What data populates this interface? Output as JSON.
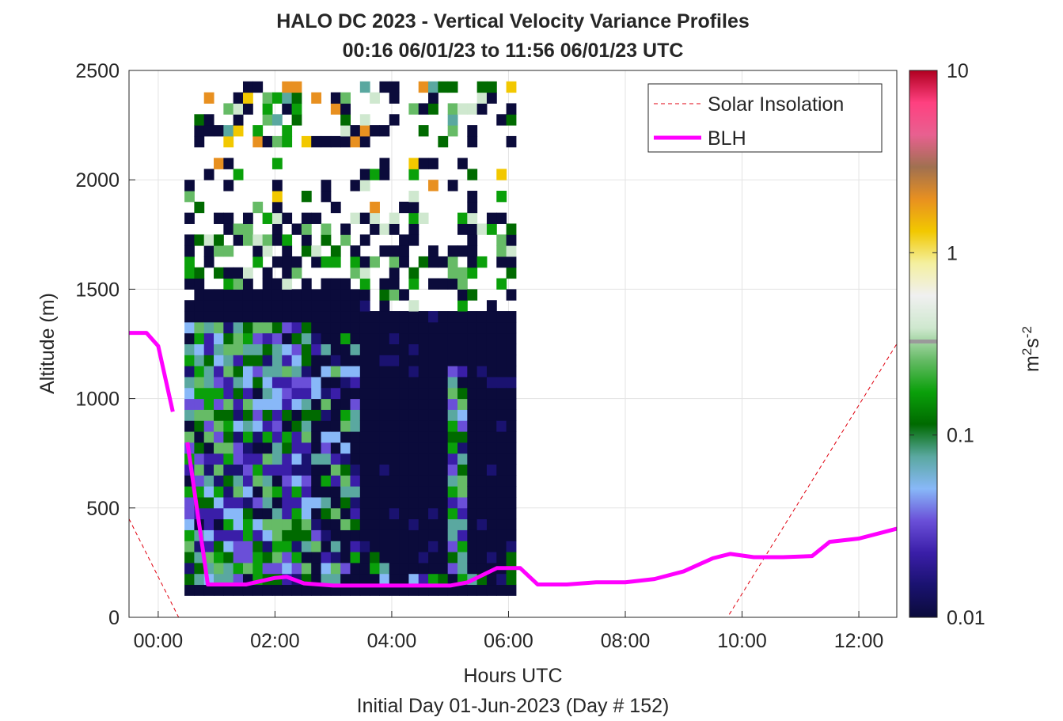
{
  "chart_data": {
    "type": "heatmap",
    "title_line1": "HALO DC 2023 - Vertical Velocity Variance Profiles",
    "title_line2": "00:16 06/01/23 to 11:56 06/01/23  UTC",
    "xlabel": "Hours UTC",
    "xlabel2": "Initial Day 01-Jun-2023 (Day # 152)",
    "ylabel": "Altitude (m)",
    "colorbar_label": "m²s⁻²",
    "colorbar_scale": "log",
    "colorbar_range": [
      0.01,
      10
    ],
    "colorbar_ticks": [
      "0.01",
      "0.1",
      "1",
      "10"
    ],
    "colorbar_colors": [
      "#0b0b3b",
      "#1a1270",
      "#3a1ea8",
      "#6a4fd8",
      "#88b8f8",
      "#5aa8a0",
      "#006a00",
      "#0aa00a",
      "#66bb66",
      "#cfe8cf",
      "#f0f0f0",
      "#f4f0a0",
      "#f2c800",
      "#e89020",
      "#a07050",
      "#e86090",
      "#ff4080",
      "#b00020"
    ],
    "xlim": [
      -0.5,
      12.65
    ],
    "ylim": [
      0,
      2500
    ],
    "grid": true,
    "x_ticks": [
      "00:00",
      "02:00",
      "04:00",
      "06:00",
      "08:00",
      "10:00",
      "12:00"
    ],
    "y_ticks": [
      "0",
      "500",
      "1000",
      "1500",
      "2000",
      "2500"
    ],
    "legend_position": "top-right",
    "series": [
      {
        "name": "Solar Insolation",
        "style": "dashed",
        "color": "#e0000f",
        "x": [
          -0.5,
          0.35,
          9.75,
          12.65
        ],
        "y": [
          450,
          0,
          0,
          1250
        ]
      },
      {
        "name": "BLH",
        "style": "solid",
        "color": "#ff00ff",
        "segments": [
          {
            "x": [
              -0.5,
              -0.2,
              0.0,
              0.25
            ],
            "y": [
              1300,
              1300,
              1240,
              940
            ]
          },
          {
            "x": [
              0.5,
              0.85,
              1.5,
              2.0,
              2.2,
              2.5,
              3.0,
              3.5,
              4.0,
              4.5,
              5.0,
              5.3,
              5.8,
              6.2,
              6.5,
              7.0,
              7.5,
              8.0,
              8.5,
              9.0,
              9.5,
              9.8,
              10.2,
              10.7,
              11.2,
              11.5,
              12.0,
              12.65
            ],
            "y": [
              800,
              150,
              150,
              180,
              185,
              155,
              145,
              145,
              145,
              145,
              145,
              160,
              225,
              225,
              150,
              150,
              160,
              160,
              175,
              210,
              270,
              290,
              275,
              275,
              280,
              345,
              360,
              405
            ]
          }
        ]
      }
    ],
    "grid_cells": {
      "x_start": 0.45,
      "x_step": 0.167,
      "y_start": 100,
      "y_step": 50,
      "columns": 34,
      "rows": 47,
      "note": "categorical color levels 0-11 per cell"
    }
  }
}
